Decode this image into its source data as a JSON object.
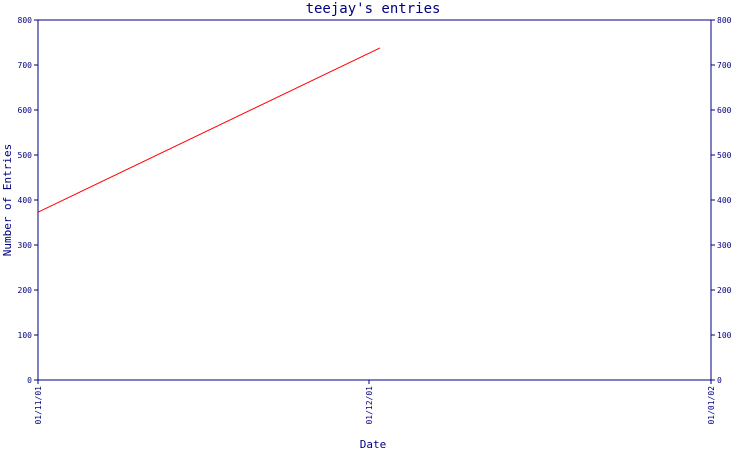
{
  "chart_data": {
    "type": "line",
    "title": "teejay's entries",
    "xlabel": "Date",
    "ylabel": "Number of Entries",
    "x_ticks": [
      "01/11/01",
      "01/12/01",
      "01/01/02"
    ],
    "x_range": [
      "2001-11-01",
      "2002-01-01"
    ],
    "ylim": [
      0,
      800
    ],
    "y_ticks": [
      0,
      100,
      200,
      300,
      400,
      500,
      600,
      700,
      800
    ],
    "y_axis_right": true,
    "grid": false,
    "series": [
      {
        "color": "#ff0000",
        "points": [
          {
            "x": "2001-11-01",
            "y": 373
          },
          {
            "x": "2001-12-02",
            "y": 738
          }
        ]
      }
    ]
  },
  "colors": {
    "axis": "#000080",
    "line": "#ff0000",
    "background": "#ffffff"
  }
}
